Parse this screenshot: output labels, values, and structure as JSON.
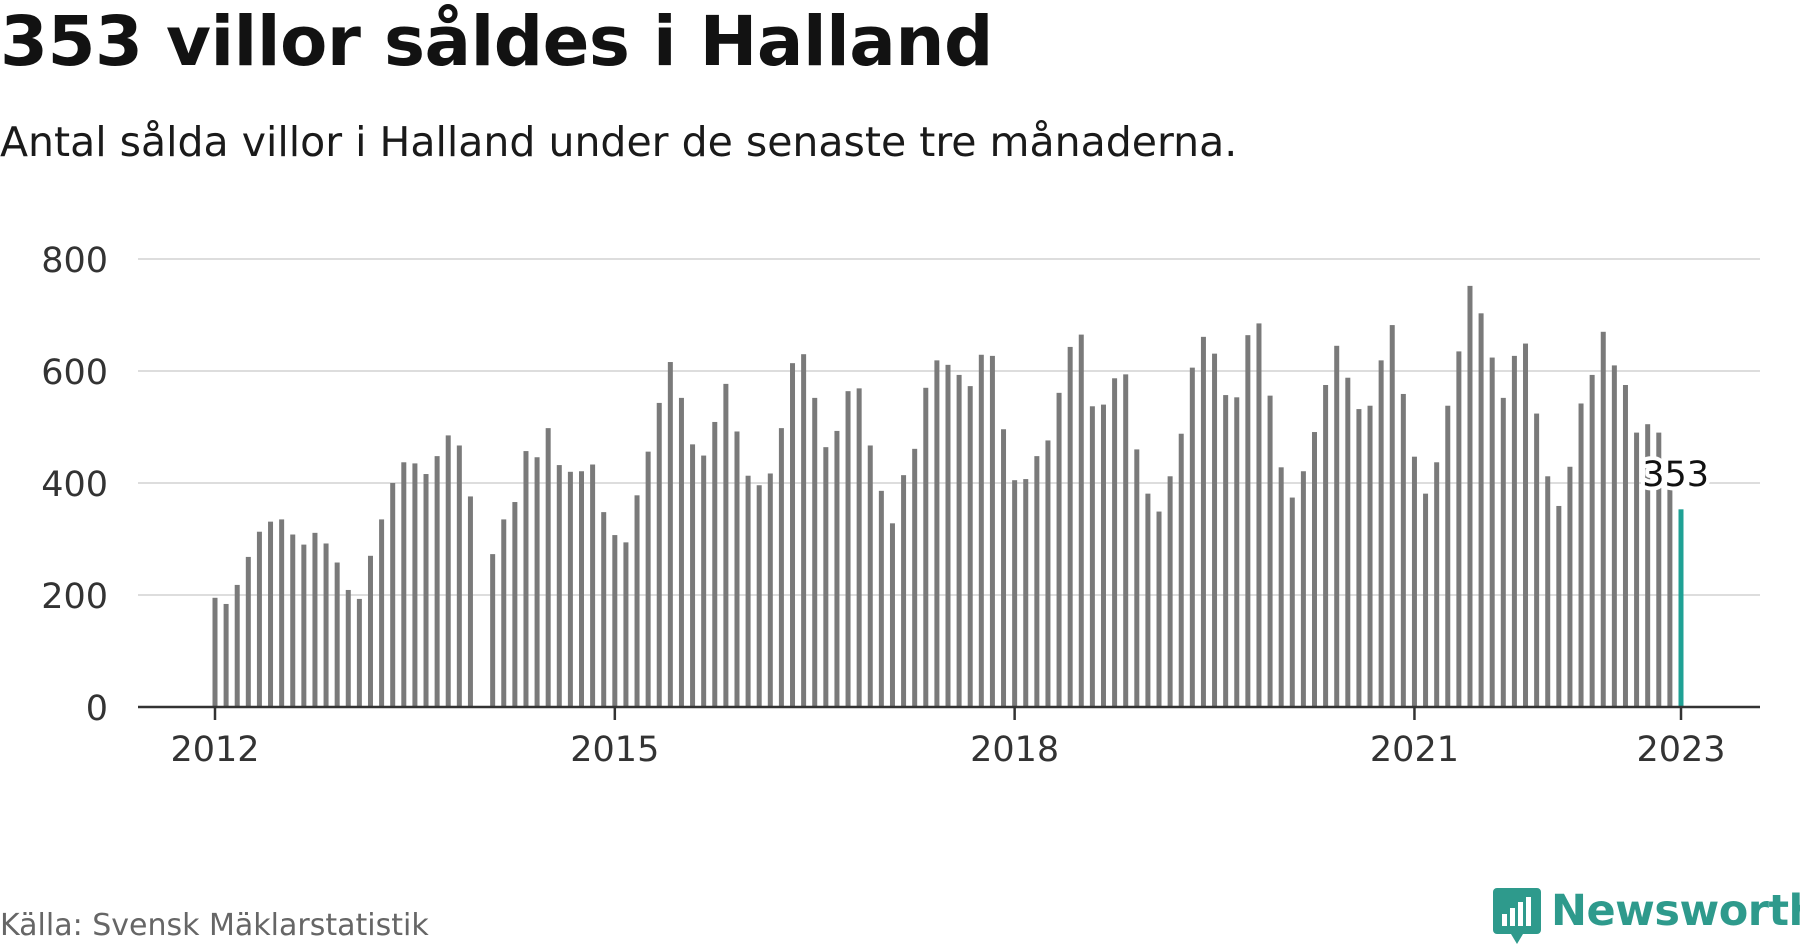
{
  "title": "353 villor såldes i Halland",
  "subtitle": "Antal sålda villor i Halland under de senaste tre månaderna.",
  "source": "Källa: Svensk Mäklarstatistik",
  "brand": {
    "name": "Newsworthy",
    "color": "#2e9a8c",
    "icon": "newsworthy-bar-chart-speech-bubble-icon"
  },
  "colors": {
    "bar": "#7a7a7a",
    "highlight": "#1fa195",
    "grid": "#dddddd",
    "axis": "#333333"
  },
  "chart_data": {
    "type": "bar",
    "x_unit": "month",
    "start_month": "2012-01",
    "end_month": "2023-01",
    "ylim": [
      0,
      800
    ],
    "y_ticks": [
      0,
      200,
      400,
      600,
      800
    ],
    "x_ticks": [
      "2012",
      "2015",
      "2018",
      "2021",
      "2023"
    ],
    "grid": true,
    "highlight_label": "353",
    "values": [
      195,
      184,
      218,
      268,
      313,
      331,
      335,
      308,
      290,
      311,
      292,
      258,
      209,
      193,
      270,
      335,
      400,
      437,
      435,
      416,
      448,
      485,
      467,
      376,
      null,
      273,
      335,
      366,
      457,
      446,
      498,
      432,
      420,
      421,
      433,
      348,
      307,
      294,
      378,
      456,
      543,
      616,
      552,
      469,
      449,
      509,
      577,
      492,
      413,
      396,
      417,
      498,
      614,
      630,
      552,
      464,
      493,
      564,
      569,
      467,
      386,
      328,
      414,
      461,
      570,
      619,
      611,
      593,
      573,
      629,
      627,
      496,
      405,
      407,
      448,
      476,
      561,
      643,
      665,
      537,
      540,
      587,
      594,
      460,
      381,
      349,
      412,
      488,
      606,
      661,
      631,
      557,
      553,
      664,
      685,
      556,
      428,
      374,
      421,
      491,
      575,
      645,
      588,
      532,
      538,
      619,
      682,
      559,
      447,
      381,
      437,
      538,
      635,
      752,
      703,
      624,
      552,
      627,
      649,
      524,
      412,
      359,
      429,
      542,
      593,
      670,
      610,
      575,
      490,
      505,
      490,
      400,
      353
    ]
  }
}
